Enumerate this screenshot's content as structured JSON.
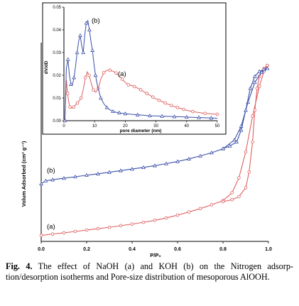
{
  "chart_data": [
    {
      "type": "line",
      "title": "",
      "xlabel": "P/P₀",
      "ylabel": "Volum Adsorbed (cm³ g⁻¹)",
      "xlim": [
        0,
        1
      ],
      "x_ticks": [
        "0.0",
        "0.2",
        "0.4",
        "0.6",
        "0.8",
        "1.0"
      ],
      "y_ticks_shown": false,
      "grid": false,
      "series_labels": [
        "(a)",
        "(b)"
      ],
      "series": [
        {
          "color": "#e06060",
          "marker": "circle",
          "adsorption": [
            [
              0.0,
              0.03
            ],
            [
              0.05,
              0.037
            ],
            [
              0.1,
              0.043
            ],
            [
              0.15,
              0.05
            ],
            [
              0.2,
              0.057
            ],
            [
              0.25,
              0.064
            ],
            [
              0.3,
              0.071
            ],
            [
              0.35,
              0.079
            ],
            [
              0.4,
              0.087
            ],
            [
              0.45,
              0.096
            ],
            [
              0.5,
              0.106
            ],
            [
              0.55,
              0.118
            ],
            [
              0.6,
              0.132
            ],
            [
              0.65,
              0.148
            ],
            [
              0.7,
              0.165
            ],
            [
              0.75,
              0.184
            ],
            [
              0.8,
              0.205
            ],
            [
              0.84,
              0.245
            ],
            [
              0.87,
              0.32
            ],
            [
              0.9,
              0.45
            ],
            [
              0.93,
              0.63
            ],
            [
              0.96,
              0.78
            ],
            [
              0.98,
              0.855
            ],
            [
              0.995,
              0.885
            ]
          ],
          "desorption": [
            [
              0.995,
              0.885
            ],
            [
              0.98,
              0.87
            ],
            [
              0.96,
              0.83
            ],
            [
              0.95,
              0.77
            ],
            [
              0.94,
              0.66
            ],
            [
              0.93,
              0.5
            ],
            [
              0.915,
              0.35
            ],
            [
              0.9,
              0.27
            ],
            [
              0.87,
              0.225
            ],
            [
              0.84,
              0.21
            ],
            [
              0.8,
              0.2
            ]
          ]
        },
        {
          "color": "#3a4fa8",
          "marker": "triangle",
          "adsorption": [
            [
              0.0,
              0.29
            ],
            [
              0.02,
              0.305
            ],
            [
              0.05,
              0.31
            ],
            [
              0.1,
              0.318
            ],
            [
              0.15,
              0.325
            ],
            [
              0.2,
              0.333
            ],
            [
              0.25,
              0.34
            ],
            [
              0.3,
              0.348
            ],
            [
              0.35,
              0.356
            ],
            [
              0.4,
              0.364
            ],
            [
              0.45,
              0.372
            ],
            [
              0.5,
              0.381
            ],
            [
              0.55,
              0.391
            ],
            [
              0.6,
              0.402
            ],
            [
              0.65,
              0.415
            ],
            [
              0.7,
              0.43
            ],
            [
              0.75,
              0.446
            ],
            [
              0.8,
              0.466
            ],
            [
              0.85,
              0.51
            ],
            [
              0.88,
              0.58
            ],
            [
              0.91,
              0.7
            ],
            [
              0.94,
              0.8
            ],
            [
              0.97,
              0.85
            ],
            [
              0.995,
              0.87
            ]
          ],
          "desorption": [
            [
              0.995,
              0.87
            ],
            [
              0.98,
              0.865
            ],
            [
              0.96,
              0.855
            ],
            [
              0.94,
              0.83
            ],
            [
              0.92,
              0.77
            ],
            [
              0.9,
              0.66
            ],
            [
              0.88,
              0.56
            ],
            [
              0.86,
              0.5
            ],
            [
              0.83,
              0.48
            ],
            [
              0.8,
              0.467
            ]
          ]
        }
      ]
    },
    {
      "type": "line",
      "title": "",
      "xlabel": "pore diameter (nm)",
      "ylabel": "dV/dD",
      "xlim": [
        0,
        50
      ],
      "ylim": [
        0,
        0.05
      ],
      "x_ticks": [
        "0",
        "10",
        "20",
        "30",
        "40",
        "50"
      ],
      "y_ticks": [
        "0.00",
        "0.01",
        "0.02",
        "0.03",
        "0.04",
        "0.05"
      ],
      "grid": false,
      "series_labels": [
        "(a)",
        "(b)"
      ],
      "series": [
        {
          "color": "#e06060",
          "marker": "circle",
          "x": [
            0.3,
            0.8,
            1.2,
            1.6,
            2,
            2.6,
            3.2,
            3.8,
            4.4,
            5,
            5.6,
            6.2,
            7,
            7.6,
            8.2,
            9,
            9.6,
            10.4,
            11.2,
            12,
            13,
            14,
            15,
            16,
            17,
            18,
            19,
            20,
            21,
            22,
            23,
            24,
            25,
            26,
            27,
            28,
            29,
            30,
            31,
            32,
            33,
            34,
            35,
            36,
            37,
            38,
            39,
            40,
            42,
            44,
            46,
            48,
            50
          ],
          "y": [
            0.0,
            0.018,
            0.012,
            0.008,
            0.006,
            0.0055,
            0.006,
            0.007,
            0.0078,
            0.0088,
            0.01,
            0.013,
            0.019,
            0.0215,
            0.02,
            0.016,
            0.0135,
            0.0125,
            0.0142,
            0.0182,
            0.0212,
            0.0222,
            0.0222,
            0.0218,
            0.021,
            0.0197,
            0.0183,
            0.0168,
            0.0158,
            0.0155,
            0.015,
            0.0143,
            0.0136,
            0.0128,
            0.012,
            0.0112,
            0.0104,
            0.0096,
            0.009,
            0.0084,
            0.0078,
            0.0072,
            0.0067,
            0.0062,
            0.0058,
            0.0054,
            0.005,
            0.0046,
            0.004,
            0.0036,
            0.0032,
            0.003,
            0.0028
          ]
        },
        {
          "color": "#3a4fa8",
          "marker": "triangle",
          "x": [
            0.3,
            0.8,
            1.3,
            1.8,
            2.3,
            2.8,
            3.3,
            3.8,
            4.3,
            4.8,
            5.3,
            5.8,
            6.3,
            6.8,
            7.3,
            7.8,
            8.3,
            8.8,
            9.3,
            9.8,
            10.3,
            11,
            12,
            13,
            14,
            15,
            16,
            17,
            18,
            19,
            20,
            22,
            24,
            26,
            28,
            30,
            32,
            34,
            36,
            38,
            40,
            42,
            44,
            46,
            48,
            50
          ],
          "y": [
            0.0,
            0.023,
            0.027,
            0.02,
            0.016,
            0.016,
            0.019,
            0.024,
            0.03,
            0.035,
            0.0375,
            0.033,
            0.03,
            0.038,
            0.043,
            0.044,
            0.04,
            0.035,
            0.031,
            0.025,
            0.02,
            0.015,
            0.01,
            0.0075,
            0.0058,
            0.0048,
            0.0041,
            0.0037,
            0.0035,
            0.0033,
            0.0031,
            0.0028,
            0.0026,
            0.0024,
            0.0022,
            0.0021,
            0.002,
            0.0019,
            0.0018,
            0.0017,
            0.0016,
            0.0015,
            0.0014,
            0.0013,
            0.0012,
            0.0011
          ]
        }
      ]
    }
  ],
  "caption": {
    "label": "Fig. 4.",
    "text": " The effect of NaOH (a) and KOH (b) on the Nitrogen adsorp-tion/desorption isotherms and Pore-size distribution of mesoporous AlOOH."
  }
}
